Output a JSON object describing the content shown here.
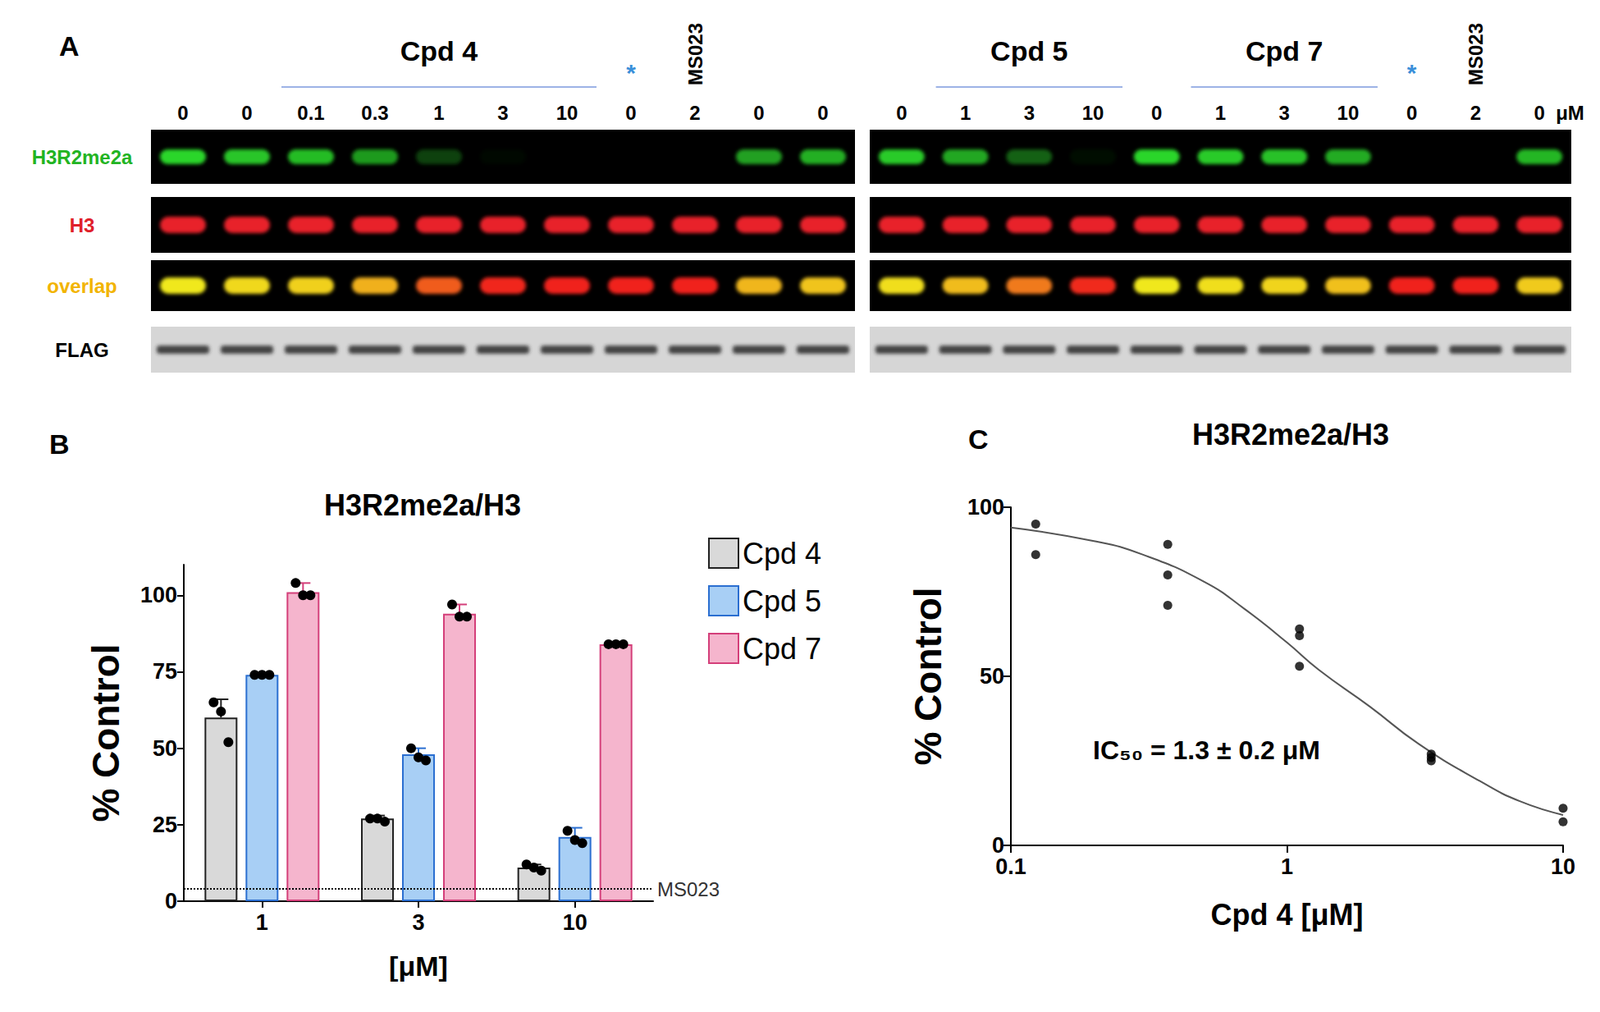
{
  "blot": {
    "label": "A",
    "rows": [
      {
        "label": "H3R2me2a",
        "color": "#22b422"
      },
      {
        "label": "H3",
        "color": "#e0202a"
      },
      {
        "label": "overlap",
        "color": "#f2b400"
      },
      {
        "label": "FLAG",
        "color": "#000000"
      }
    ],
    "panels": [
      {
        "lanes": [
          {
            "dose": 0,
            "header": null
          },
          {
            "dose": 0,
            "header": null
          },
          {
            "dose": 0.1,
            "header": "Cpd 4"
          },
          {
            "dose": 0.3,
            "header": "Cpd 4"
          },
          {
            "dose": 1,
            "header": "Cpd 4"
          },
          {
            "dose": 3,
            "header": "Cpd 4"
          },
          {
            "dose": 10,
            "header": "Cpd 4"
          },
          {
            "dose": 0,
            "header": "*"
          },
          {
            "dose": 2,
            "header": "MS023"
          },
          {
            "dose": 0,
            "header": null
          },
          {
            "dose": 0,
            "header": null
          }
        ],
        "h3r2me2a_intensity": [
          1,
          0.92,
          0.88,
          0.72,
          0.3,
          0.04,
          0,
          0,
          0,
          0.75,
          0.82
        ]
      },
      {
        "lanes": [
          {
            "dose": 0,
            "header": null
          },
          {
            "dose": 1,
            "header": "Cpd 5"
          },
          {
            "dose": 3,
            "header": "Cpd 5"
          },
          {
            "dose": 10,
            "header": "Cpd 5"
          },
          {
            "dose": 0,
            "header": null
          },
          {
            "dose": 1,
            "header": "Cpd 7"
          },
          {
            "dose": 3,
            "header": "Cpd 7"
          },
          {
            "dose": 10,
            "header": "Cpd 7"
          },
          {
            "dose": 0,
            "header": "*"
          },
          {
            "dose": 2,
            "header": "MS023"
          },
          {
            "dose": 0,
            "header": null
          }
        ],
        "unit": "μM",
        "h3r2me2a_intensity": [
          0.95,
          0.78,
          0.45,
          0.06,
          1,
          0.95,
          0.9,
          0.8,
          0,
          0,
          0.85
        ]
      }
    ]
  },
  "chart_data": [
    {
      "label": "B",
      "type": "bar",
      "title": "H3R2me2a/H3",
      "x_label": "[μM]",
      "y_label": "% Control",
      "categories": [
        "1",
        "3",
        "10"
      ],
      "series": [
        {
          "name": "Cpd 4",
          "color": "#d9d9d9",
          "values": [
            60,
            27,
            11
          ],
          "errors": [
            6,
            1,
            1
          ],
          "points": [
            [
              65,
              62,
              52
            ],
            [
              27,
              27,
              26
            ],
            [
              12,
              11,
              10
            ]
          ]
        },
        {
          "name": "Cpd 5",
          "color": "#a8cff5",
          "values": [
            74,
            48,
            21
          ],
          "errors": [
            0.5,
            2,
            3
          ],
          "points": [
            [
              74,
              74,
              74
            ],
            [
              50,
              47,
              46
            ],
            [
              23,
              20,
              19
            ]
          ]
        },
        {
          "name": "Cpd 7",
          "color": "#f5b5cd",
          "values": [
            101,
            94,
            84
          ],
          "errors": [
            3,
            3,
            0.5
          ],
          "points": [
            [
              104,
              100,
              100
            ],
            [
              97,
              93,
              93
            ],
            [
              84,
              84,
              84
            ]
          ]
        }
      ],
      "reference": {
        "label": "MS023",
        "value": 4,
        "line_style": "dotted"
      },
      "ylim": [
        0,
        110
      ],
      "yticks": [
        0,
        25,
        50,
        75,
        100
      ],
      "grid": false,
      "legend": "right"
    },
    {
      "label": "C",
      "type": "scatter",
      "title": "H3R2me2a/H3",
      "x_label": "Cpd 4 [μM]",
      "y_label": "% Control",
      "log": "x",
      "xlim": [
        0.1,
        10
      ],
      "xticks": [
        0.1,
        1,
        10
      ],
      "ylim": [
        0,
        100
      ],
      "yticks": [
        0,
        50,
        100
      ],
      "grid": false,
      "annotations": [
        "IC₅₀ = 1.3 ± 0.2 μM"
      ],
      "series": [
        {
          "type": "scatter",
          "color": "#000000",
          "marker": "circle",
          "x": [
            0.123,
            0.123,
            0.37,
            0.37,
            0.37,
            1.11,
            1.11,
            1.11,
            3.33,
            3.33,
            3.33,
            10,
            10
          ],
          "values": [
            95,
            86,
            89,
            80,
            71,
            64,
            62,
            53,
            27,
            26,
            25,
            11,
            7
          ]
        },
        {
          "type": "line",
          "color": "#555555",
          "line_style": "solid",
          "x": [
            0.1,
            0.2,
            0.3,
            0.5,
            0.7,
            1,
            1.3,
            2,
            3,
            5,
            7,
            10
          ],
          "values": [
            94,
            90,
            86,
            78,
            70,
            60,
            52,
            41,
            30,
            19,
            13,
            9
          ]
        }
      ]
    }
  ]
}
